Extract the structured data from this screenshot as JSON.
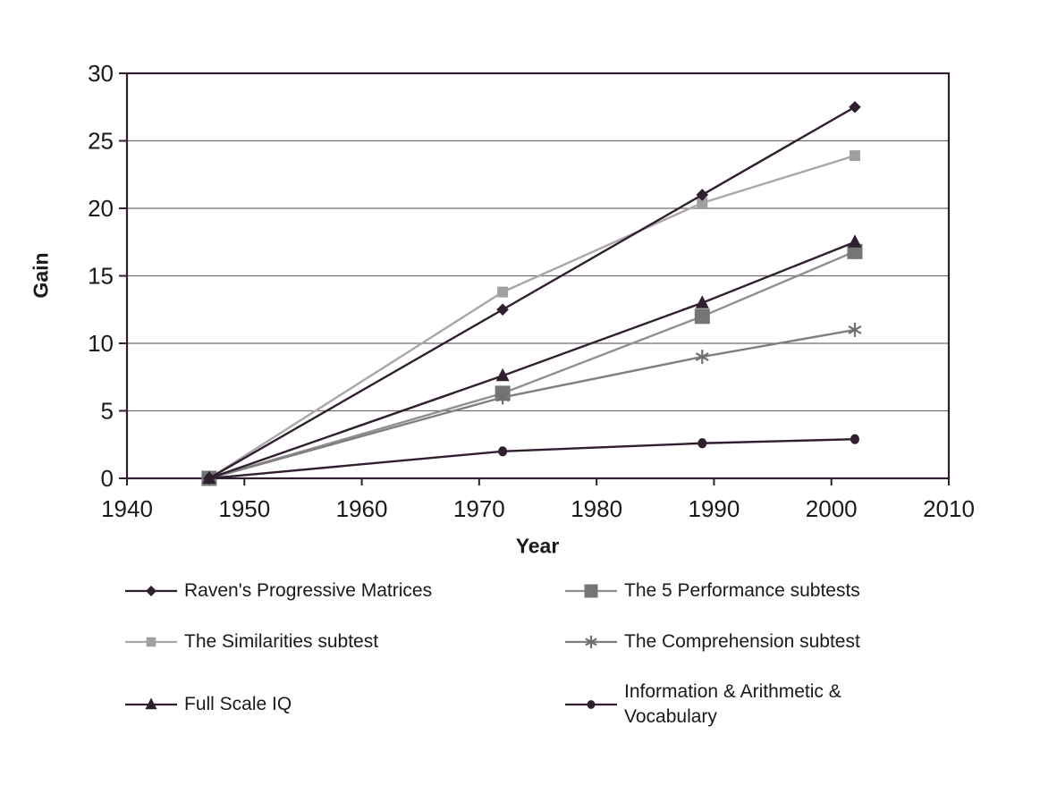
{
  "chart_data": {
    "type": "line",
    "title": "",
    "xlabel": "Year",
    "ylabel": "Gain",
    "x": [
      1947,
      1972,
      1989,
      2002
    ],
    "xlim": [
      1940,
      2010
    ],
    "ylim": [
      0,
      30
    ],
    "xticks": [
      "1940",
      "1950",
      "1960",
      "1970",
      "1980",
      "1990",
      "2000",
      "2010"
    ],
    "xtick_values": [
      1940,
      1950,
      1960,
      1970,
      1980,
      1990,
      2000,
      2010
    ],
    "yticks": [
      "0",
      "5",
      "10",
      "15",
      "20",
      "25",
      "30"
    ],
    "ytick_values": [
      0,
      5,
      10,
      15,
      20,
      25,
      30
    ],
    "grid": "horizontal",
    "legend_position": "below",
    "legend_columns": 2,
    "axis_color": "#2f1f2f",
    "gridline_color": "#6e6e6e",
    "text_color": "#1a1a1a",
    "background_color": "#ffffff",
    "series": [
      {
        "name": "Raven's Progressive Matrices",
        "marker": "diamond",
        "color": "#2f1f2f",
        "line_color": "#2f1f2f",
        "values": [
          0,
          12.5,
          21,
          27.5
        ]
      },
      {
        "name": "The 5 Performance subtests",
        "marker": "square-large",
        "color": "#757575",
        "line_color": "#8f8f8f",
        "values": [
          0,
          6.3,
          12,
          16.8
        ]
      },
      {
        "name": "The Similarities subtest",
        "marker": "square-small",
        "color": "#a0a0a0",
        "line_color": "#a8a8a8",
        "values": [
          0,
          13.8,
          20.4,
          23.9
        ]
      },
      {
        "name": "The Comprehension subtest",
        "marker": "asterisk",
        "color": "#6f6f6f",
        "line_color": "#7f7f7f",
        "values": [
          0,
          6,
          9,
          11
        ]
      },
      {
        "name": "Full Scale IQ",
        "marker": "triangle",
        "color": "#2f1f2f",
        "line_color": "#2f1f2f",
        "values": [
          0,
          7.6,
          13,
          17.5
        ]
      },
      {
        "name": "Information & Arithmetic & Vocabulary",
        "marker": "circle",
        "color": "#2f1f2f",
        "line_color": "#2f1f2f",
        "values": [
          0,
          2,
          2.6,
          2.9
        ]
      }
    ]
  }
}
